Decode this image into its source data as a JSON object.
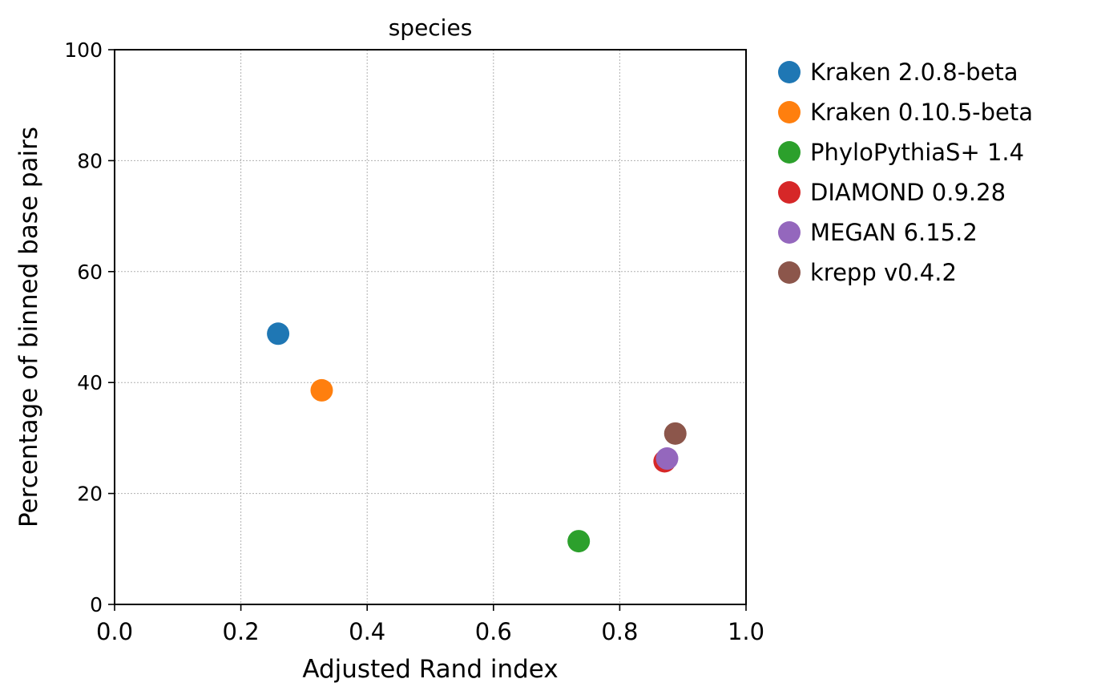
{
  "chart_data": {
    "type": "scatter",
    "title": "species",
    "xlabel": "Adjusted Rand index",
    "ylabel": "Percentage of binned base pairs",
    "xlim": [
      0.0,
      1.0
    ],
    "ylim": [
      0,
      100
    ],
    "xticks": [
      "0.0",
      "0.2",
      "0.4",
      "0.6",
      "0.8",
      "1.0"
    ],
    "yticks": [
      "0",
      "20",
      "40",
      "60",
      "80",
      "100"
    ],
    "grid": true,
    "legend_position": "outside-right",
    "series": [
      {
        "name": "Kraken 2.0.8-beta",
        "color": "#1f77b4",
        "x": 0.259,
        "y": 48.8
      },
      {
        "name": "Kraken 0.10.5-beta",
        "color": "#ff7f0e",
        "x": 0.328,
        "y": 38.6
      },
      {
        "name": "PhyloPythiaS+ 1.4",
        "color": "#2ca02c",
        "x": 0.735,
        "y": 11.4
      },
      {
        "name": "DIAMOND 0.9.28",
        "color": "#d62728",
        "x": 0.871,
        "y": 25.8
      },
      {
        "name": "MEGAN 6.15.2",
        "color": "#9467bd",
        "x": 0.875,
        "y": 26.3
      },
      {
        "name": "krepp v0.4.2",
        "color": "#8c564b",
        "x": 0.888,
        "y": 30.8
      }
    ]
  }
}
